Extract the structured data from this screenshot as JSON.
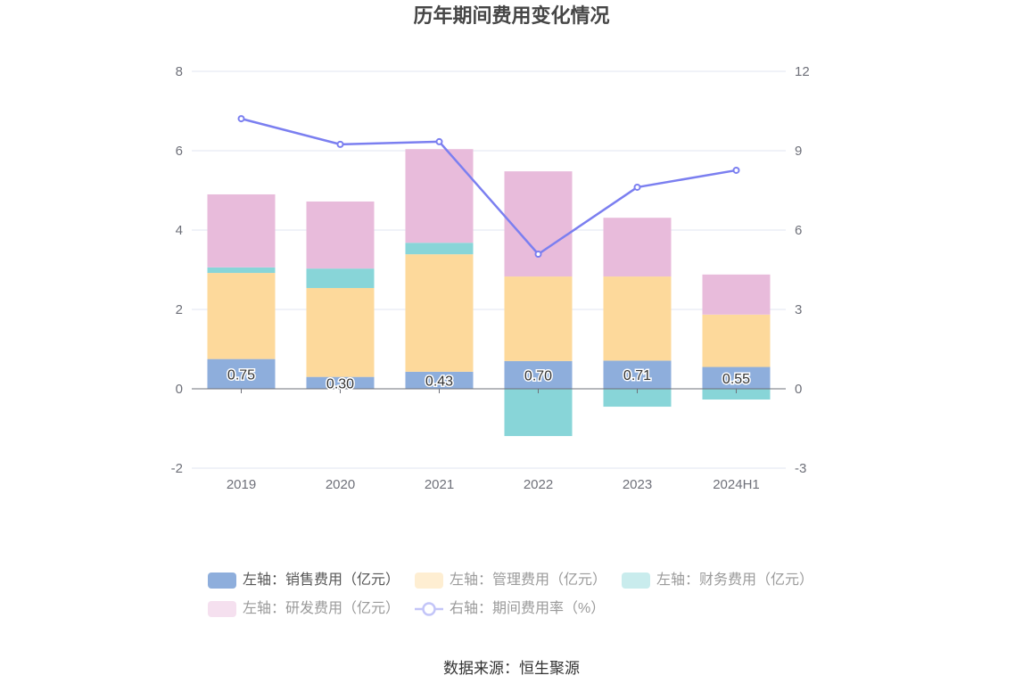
{
  "title": "历年期间费用变化情况",
  "source": "数据来源：恒生聚源",
  "chart_data": {
    "type": "bar",
    "categories": [
      "2019",
      "2020",
      "2021",
      "2022",
      "2023",
      "2024H1"
    ],
    "left_axis": {
      "min": -2,
      "max": 8,
      "ticks": [
        "-2",
        "0",
        "2",
        "4",
        "6",
        "8"
      ]
    },
    "right_axis": {
      "min": -3,
      "max": 12,
      "ticks": [
        "-3",
        "0",
        "3",
        "6",
        "9",
        "12"
      ]
    },
    "grid": true,
    "legend_position": "bottom",
    "series": [
      {
        "name": "左轴：销售费用（亿元）",
        "type": "bar",
        "axis": "left",
        "stack": true,
        "color": "#8eaedc",
        "values": [
          0.75,
          0.3,
          0.43,
          0.7,
          0.71,
          0.55
        ],
        "labels": [
          "0.75",
          "0.30",
          "0.43",
          "0.70",
          "0.71",
          "0.55"
        ]
      },
      {
        "name": "左轴：管理费用（亿元）",
        "type": "bar",
        "axis": "left",
        "stack": true,
        "color": "#fdd99b",
        "values": [
          2.17,
          2.24,
          2.96,
          2.13,
          2.12,
          1.32
        ]
      },
      {
        "name": "左轴：财务费用（亿元）",
        "type": "bar",
        "axis": "left",
        "stack": true,
        "color": "#88d5d8",
        "values": [
          0.14,
          0.49,
          0.29,
          -1.19,
          -0.45,
          -0.27
        ]
      },
      {
        "name": "左轴：研发费用（亿元）",
        "type": "bar",
        "axis": "left",
        "stack": true,
        "color": "#e8bbdb",
        "values": [
          1.84,
          1.69,
          2.36,
          2.65,
          1.48,
          1.01
        ]
      },
      {
        "name": "右轴：期间费用率（%）",
        "type": "line",
        "axis": "right",
        "color": "#7b7ff0",
        "values": [
          10.21,
          9.24,
          9.34,
          5.09,
          7.62,
          8.26
        ]
      }
    ]
  }
}
